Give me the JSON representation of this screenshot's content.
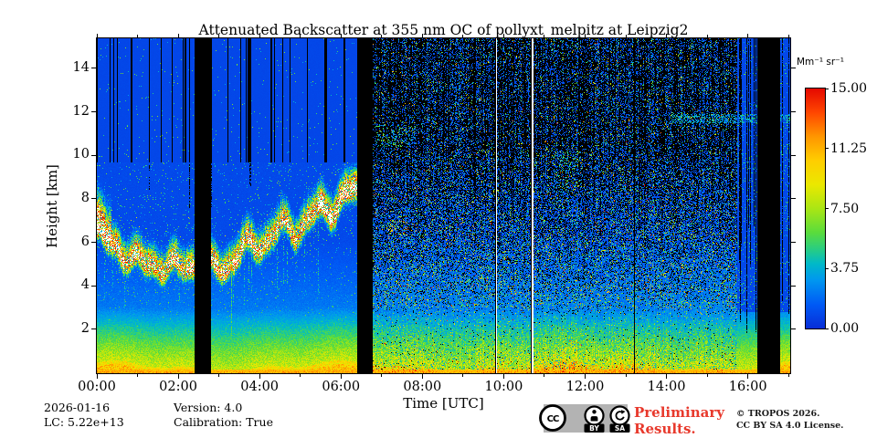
{
  "chart": {
    "title": "Attenuated Backscatter at 355 nm OC of pollyxt_melpitz at Leipzig2",
    "xlabel": "Time [UTC]",
    "ylabel": "Height [km]",
    "x_ticks": [
      {
        "hour": 0,
        "label": "00:00"
      },
      {
        "hour": 2,
        "label": "02:00"
      },
      {
        "hour": 4,
        "label": "04:00"
      },
      {
        "hour": 6,
        "label": "06:00"
      },
      {
        "hour": 8,
        "label": "08:00"
      },
      {
        "hour": 10,
        "label": "10:00"
      },
      {
        "hour": 12,
        "label": "12:00"
      },
      {
        "hour": 14,
        "label": "14:00"
      },
      {
        "hour": 16,
        "label": "16:00"
      }
    ],
    "x_minor_tick_hours": [
      1,
      3,
      5,
      7,
      9,
      11,
      13,
      15,
      17
    ],
    "y_ticks": [
      {
        "km": 2,
        "label": "2"
      },
      {
        "km": 4,
        "label": "4"
      },
      {
        "km": 6,
        "label": "6"
      },
      {
        "km": 8,
        "label": "8"
      },
      {
        "km": 10,
        "label": "10"
      },
      {
        "km": 12,
        "label": "12"
      },
      {
        "km": 14,
        "label": "14"
      }
    ],
    "colorbar": {
      "unit": "Mm⁻¹ sr⁻¹",
      "tick_labels": [
        "15.00",
        "11.25",
        "7.50",
        "3.75",
        "0.00"
      ],
      "tick_values": [
        15.0,
        11.25,
        7.5,
        3.75,
        0.0
      ]
    }
  },
  "chart_data": {
    "type": "heatmap",
    "title": "Attenuated Backscatter at 355 nm OC of pollyxt_melpitz at Leipzig2",
    "xlabel": "Time [UTC]",
    "ylabel": "Height [km]",
    "time_range_hours": [
      0,
      17.04
    ],
    "height_range_km": [
      0,
      15.4
    ],
    "value_range": [
      0,
      15
    ],
    "value_unit": "Mm⁻¹ sr⁻¹",
    "regions": [
      {
        "name": "night",
        "from_h": 0.0,
        "to_h": 6.4,
        "description": "Clean nighttime signal: uniform blue free troposphere, black laser-off stripes above 9.7 km, lofted aerosol/cloud layer 4.5-8.5 km with white saturated cores"
      },
      {
        "name": "day",
        "from_h": 6.78,
        "to_h": 15.73,
        "description": "Daytime: strong solar background noise, random colored speckle over black above ~3 km"
      },
      {
        "name": "evening",
        "from_h": 15.73,
        "to_h": 17.04,
        "description": "Evening: blue background again with thin black dropout stripes"
      }
    ],
    "data_gaps_hours": [
      [
        2.4,
        2.8
      ],
      [
        6.4,
        6.78
      ],
      [
        16.23,
        16.8
      ]
    ],
    "artifact_lines": [
      {
        "hour": 9.81,
        "color": "white"
      },
      {
        "hour": 10.68,
        "color": "white"
      },
      {
        "hour": 13.2,
        "color": "black"
      },
      {
        "hour": 3.3,
        "color": "green-column"
      }
    ],
    "stripe_zone_bottom_km": 9.7,
    "aerosol_layer": {
      "description": "Meandering lofted layer, saturated (white) core with red/yellow/green fringe, descending from ~6.5 km at 00:00 to ~4.8 km at 02:00, then ascending plume train to ~8.2 km by 06:20",
      "core_value": 15,
      "path_h_km": [
        [
          0,
          6.5
        ],
        [
          0.25,
          6.0
        ],
        [
          0.6,
          5.5
        ],
        [
          1.0,
          5.1
        ],
        [
          1.5,
          4.85
        ],
        [
          2.0,
          4.8
        ],
        [
          2.4,
          4.9
        ],
        [
          2.85,
          4.6
        ],
        [
          3.1,
          4.9
        ],
        [
          3.4,
          5.3
        ],
        [
          3.7,
          5.6
        ],
        [
          4.0,
          6.0
        ],
        [
          4.3,
          6.2
        ],
        [
          4.6,
          6.5
        ],
        [
          4.9,
          6.7
        ],
        [
          5.2,
          6.9
        ],
        [
          5.5,
          7.3
        ],
        [
          5.8,
          7.7
        ],
        [
          6.1,
          8.0
        ],
        [
          6.4,
          8.2
        ]
      ]
    },
    "clusters": [
      {
        "x": [
          6.85,
          7.8
        ],
        "km": [
          10.4,
          11.4
        ],
        "p": 0.16,
        "v": [
          3.5,
          7
        ]
      },
      {
        "x": [
          7.15,
          7.65
        ],
        "km": [
          6.3,
          7.2
        ],
        "p": 0.1,
        "v": [
          6,
          16
        ]
      },
      {
        "x": [
          11.2,
          11.9
        ],
        "km": [
          8.5,
          10.2
        ],
        "p": 0.1,
        "v": [
          3.5,
          8
        ]
      },
      {
        "x": [
          14.1,
          17.04
        ],
        "km": [
          11.5,
          11.9
        ],
        "p": 0.4,
        "v": [
          2.5,
          5.5
        ]
      }
    ],
    "surface_profile": [
      {
        "km": 0.1,
        "v": 10.5
      },
      {
        "km": 0.5,
        "v": 8.2
      },
      {
        "km": 1.0,
        "v": 6.9
      },
      {
        "km": 1.5,
        "v": 5.6
      },
      {
        "km": 2.0,
        "v": 4.4
      },
      {
        "km": 2.5,
        "v": 3.3
      },
      {
        "km": 3.0,
        "v": 2.3
      },
      {
        "km": 4.0,
        "v": 1.8
      },
      {
        "km": 6.0,
        "v": 1.1
      },
      {
        "km": 12.0,
        "v": 0.9
      }
    ],
    "colormap": {
      "stops": [
        {
          "f": 0.0,
          "rgb": [
            8,
            45,
            215
          ]
        },
        {
          "f": 0.1,
          "rgb": [
            0,
            90,
            245
          ]
        },
        {
          "f": 0.2,
          "rgb": [
            0,
            150,
            240
          ]
        },
        {
          "f": 0.27,
          "rgb": [
            0,
            185,
            200
          ]
        },
        {
          "f": 0.33,
          "rgb": [
            40,
            205,
            130
          ]
        },
        {
          "f": 0.4,
          "rgb": [
            90,
            220,
            60
          ]
        },
        {
          "f": 0.5,
          "rgb": [
            170,
            230,
            20
          ]
        },
        {
          "f": 0.6,
          "rgb": [
            235,
            232,
            0
          ]
        },
        {
          "f": 0.7,
          "rgb": [
            255,
            205,
            0
          ]
        },
        {
          "f": 0.8,
          "rgb": [
            255,
            150,
            0
          ]
        },
        {
          "f": 0.9,
          "rgb": [
            255,
            70,
            0
          ]
        },
        {
          "f": 1.0,
          "rgb": [
            228,
            8,
            0
          ]
        }
      ],
      "saturated_color": "#ffffff",
      "masked_color": "#000000"
    }
  },
  "footer": {
    "date": "2026-01-16",
    "lc": "LC: 5.22e+13",
    "version": "Version: 4.0",
    "calibration": "Calibration: True",
    "preliminary_line1": "Preliminary",
    "preliminary_line2": "Results.",
    "copyright_line1": "© TROPOS 2026.",
    "copyright_line2": "CC BY SA 4.0 License.",
    "cc_badge": {
      "cc": "CC",
      "by": "BY",
      "sa": "SA"
    }
  }
}
